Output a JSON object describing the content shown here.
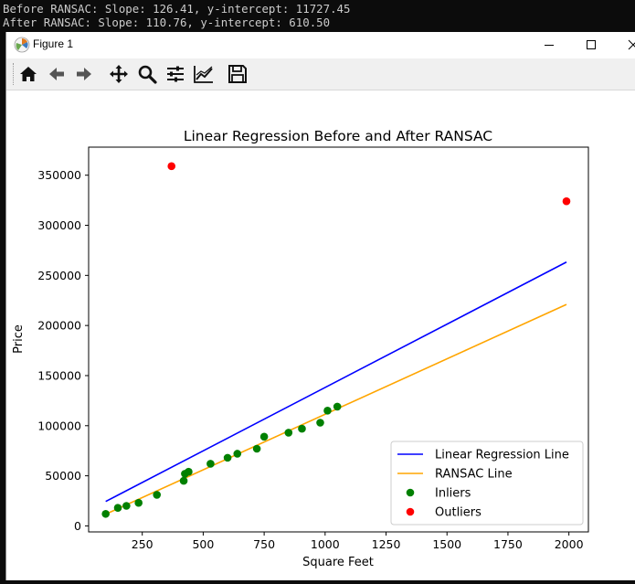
{
  "terminal": {
    "lines": [
      "Before RANSAC: Slope: 126.41, y-intercept: 11727.45",
      "After RANSAC: Slope: 110.76, y-intercept: 610.50"
    ]
  },
  "window": {
    "title": "Figure 1"
  },
  "toolbar": {
    "buttons": [
      "home-icon",
      "back-icon",
      "forward-icon",
      "pan-icon",
      "zoom-icon",
      "subplots-icon",
      "customize-icon",
      "save-icon"
    ]
  },
  "chart_data": {
    "type": "scatter",
    "title": "Linear Regression Before and After RANSAC",
    "xlabel": "Square Feet",
    "ylabel": "Price",
    "xlim": [
      30,
      2080
    ],
    "ylim": [
      -6000,
      378000
    ],
    "xticks": [
      250,
      500,
      750,
      1000,
      1250,
      1500,
      1750,
      2000
    ],
    "yticks": [
      0,
      50000,
      100000,
      150000,
      200000,
      250000,
      300000,
      350000
    ],
    "grid": false,
    "legend_position": "lower-right",
    "lines": [
      {
        "name": "Linear Regression Line",
        "color": "#0000ff",
        "x": [
          100,
          1990
        ],
        "y": [
          24368.45,
          263283.35
        ]
      },
      {
        "name": "RANSAC Line",
        "color": "#ffa500",
        "x": [
          100,
          1990
        ],
        "y": [
          11686.5,
          221022.9
        ]
      }
    ],
    "scatter": [
      {
        "name": "Inliers",
        "color": "#008000",
        "points": [
          [
            100,
            12000
          ],
          [
            150,
            18000
          ],
          [
            185,
            20000
          ],
          [
            235,
            23000
          ],
          [
            310,
            31000
          ],
          [
            420,
            45000
          ],
          [
            425,
            52000
          ],
          [
            440,
            54000
          ],
          [
            530,
            62000
          ],
          [
            600,
            68000
          ],
          [
            640,
            72000
          ],
          [
            720,
            77000
          ],
          [
            750,
            89000
          ],
          [
            850,
            93000
          ],
          [
            905,
            97000
          ],
          [
            980,
            103000
          ],
          [
            1010,
            115000
          ],
          [
            1050,
            119000
          ]
        ]
      },
      {
        "name": "Outliers",
        "color": "#ff0000",
        "points": [
          [
            370,
            359000
          ],
          [
            1990,
            324000
          ]
        ]
      }
    ]
  }
}
